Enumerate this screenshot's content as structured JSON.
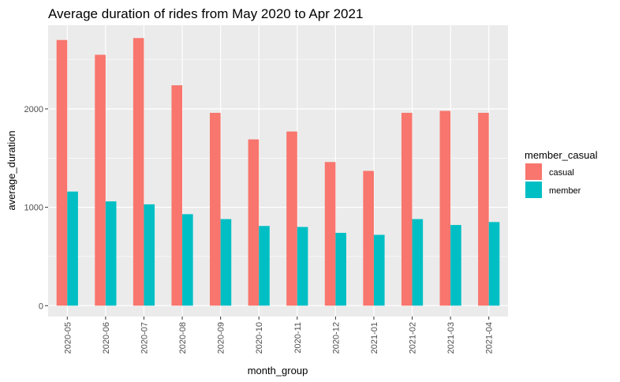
{
  "chart_data": {
    "type": "bar",
    "title": "Average duration of rides from May 2020 to Apr 2021",
    "xlabel": "month_group",
    "ylabel": "average_duration",
    "categories": [
      "2020-05",
      "2020-06",
      "2020-07",
      "2020-08",
      "2020-09",
      "2020-10",
      "2020-11",
      "2020-12",
      "2021-01",
      "2021-02",
      "2021-03",
      "2021-04"
    ],
    "series": [
      {
        "name": "casual",
        "color": "#F8766D",
        "values": [
          2700,
          2550,
          2720,
          2240,
          1960,
          1690,
          1770,
          1460,
          1370,
          1960,
          1980,
          1960
        ]
      },
      {
        "name": "member",
        "color": "#00BFC4",
        "values": [
          1160,
          1060,
          1030,
          930,
          880,
          810,
          800,
          740,
          720,
          880,
          820,
          850
        ]
      }
    ],
    "ylim": [
      -110,
      2850
    ],
    "yticks": [
      0,
      1000,
      2000
    ],
    "ytick_labels": [
      "0",
      "1000",
      "2000"
    ],
    "legend": {
      "title": "member_casual",
      "position": "right"
    },
    "grid": true,
    "panel_background": "#EBEBEB",
    "grid_color": "#FFFFFF"
  }
}
